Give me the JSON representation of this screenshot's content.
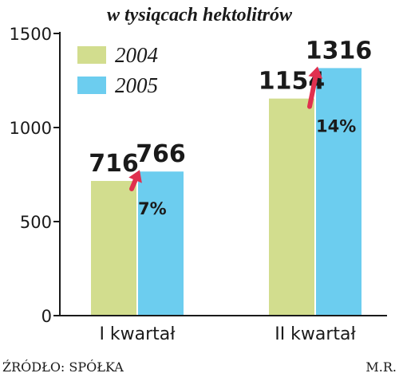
{
  "chart_data": {
    "type": "bar",
    "subtitle": "w tysiącach hektolitrów",
    "categories": [
      "I kwartał",
      "II kwartał"
    ],
    "series": [
      {
        "name": "2004",
        "values": [
          716,
          1154
        ],
        "color": "#d2dd8e"
      },
      {
        "name": "2005",
        "values": [
          766,
          1316
        ],
        "color": "#6ccdef"
      }
    ],
    "growth_labels": [
      "7%",
      "14%"
    ],
    "ylim": [
      0,
      1500
    ],
    "yticks": [
      0,
      500,
      1000,
      1500
    ],
    "grid": false,
    "legend": "top-left",
    "arrow_color": "#e0304f",
    "xlabel": "",
    "ylabel": ""
  },
  "footer": {
    "source": "ŹRÓDŁO: SPÓŁKA",
    "author": "M.R."
  }
}
